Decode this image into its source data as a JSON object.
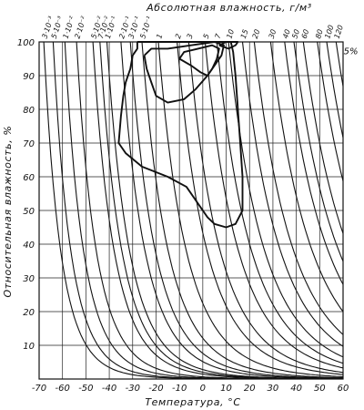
{
  "chart_data": {
    "type": "line",
    "title": "",
    "xlabel": "Температура, °С",
    "ylabel": "Относительная влажность, %",
    "top_axis_label": "Абсолютная влажность, г/м³",
    "xlim": [
      -70,
      60
    ],
    "ylim": [
      0,
      100
    ],
    "grid": true,
    "x_ticks": [
      -70,
      -60,
      -50,
      -40,
      -30,
      -20,
      -10,
      0,
      10,
      20,
      30,
      40,
      50,
      60
    ],
    "x_tick_labels": [
      "-70",
      "-60",
      "-50",
      "-40",
      "-30",
      "-20",
      "-10",
      "0",
      "10",
      "20",
      "30",
      "40",
      "50",
      "60"
    ],
    "y_ticks": [
      10,
      20,
      30,
      40,
      50,
      60,
      70,
      80,
      90,
      100
    ],
    "y_tick_labels": [
      "10",
      "20",
      "30",
      "40",
      "50",
      "60",
      "70",
      "80",
      "90",
      "100"
    ],
    "absolute_humidity_ticks": [
      {
        "label": "3·10⁻³",
        "t": -68
      },
      {
        "label": "5·10⁻³",
        "t": -64
      },
      {
        "label": "1·10⁻²",
        "t": -59
      },
      {
        "label": "2·10⁻²",
        "t": -54
      },
      {
        "label": "5·10⁻²",
        "t": -47
      },
      {
        "label": "7·10⁻²",
        "t": -44
      },
      {
        "label": "1·10⁻¹",
        "t": -41
      },
      {
        "label": "2·10⁻¹",
        "t": -35
      },
      {
        "label": "3·10⁻¹",
        "t": -31
      },
      {
        "label": "5·10⁻¹",
        "t": -26
      },
      {
        "label": "1",
        "t": -19
      },
      {
        "label": "2",
        "t": -11
      },
      {
        "label": "3",
        "t": -6
      },
      {
        "label": "5",
        "t": 1
      },
      {
        "label": "7",
        "t": 6
      },
      {
        "label": "10",
        "t": 11
      },
      {
        "label": "15",
        "t": 17
      },
      {
        "label": "20",
        "t": 22
      },
      {
        "label": "30",
        "t": 29
      },
      {
        "label": "40",
        "t": 35
      },
      {
        "label": "50",
        "t": 39
      },
      {
        "label": "60",
        "t": 43
      },
      {
        "label": "80",
        "t": 49
      },
      {
        "label": "100",
        "t": 53
      },
      {
        "label": "120",
        "t": 57
      }
    ],
    "annotations": [
      {
        "text": "5%",
        "t": 61,
        "rh": 98
      }
    ],
    "series": [
      {
        "points": [
          [
            -28,
            100
          ],
          [
            -28,
            98
          ],
          [
            -30,
            96
          ],
          [
            -31,
            92
          ],
          [
            -33,
            88
          ],
          [
            -34,
            84
          ],
          [
            -35,
            78
          ],
          [
            -36,
            70
          ],
          [
            -33,
            67
          ],
          [
            -26,
            63
          ],
          [
            -15,
            60
          ],
          [
            -7,
            57
          ],
          [
            -2,
            52
          ],
          [
            2,
            48
          ],
          [
            5,
            46
          ],
          [
            10,
            45
          ],
          [
            14,
            46
          ],
          [
            17,
            50
          ],
          [
            17,
            60
          ],
          [
            16,
            70
          ],
          [
            15,
            80
          ],
          [
            14,
            90
          ],
          [
            13,
            97
          ],
          [
            12,
            100
          ],
          [
            -28,
            100
          ]
        ]
      },
      {
        "points": [
          [
            -25,
            96
          ],
          [
            -24,
            92
          ],
          [
            -22,
            88
          ],
          [
            -20,
            84
          ],
          [
            -15,
            82
          ],
          [
            -8,
            83
          ],
          [
            -3,
            86
          ],
          [
            2,
            90
          ],
          [
            5,
            93
          ],
          [
            8,
            96
          ],
          [
            9,
            99
          ],
          [
            5,
            100
          ],
          [
            -5,
            99
          ],
          [
            -15,
            98
          ],
          [
            -22,
            98
          ],
          [
            -25,
            96
          ]
        ]
      },
      {
        "points": [
          [
            -10,
            95
          ],
          [
            -5,
            93
          ],
          [
            -1,
            91
          ],
          [
            2,
            90
          ],
          [
            4,
            92
          ],
          [
            6,
            95
          ],
          [
            7,
            98
          ],
          [
            4,
            99
          ],
          [
            -2,
            98
          ],
          [
            -8,
            97
          ],
          [
            -10,
            95
          ]
        ]
      },
      {
        "points": [
          [
            7,
            99
          ],
          [
            11,
            98
          ],
          [
            14,
            99
          ],
          [
            15,
            100
          ],
          [
            10,
            100
          ],
          [
            7,
            99
          ]
        ]
      }
    ]
  }
}
